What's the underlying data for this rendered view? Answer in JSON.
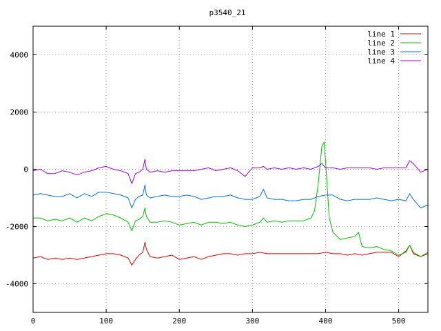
{
  "chart_data": {
    "type": "line",
    "title": "p3540_21",
    "xlabel": "",
    "ylabel": "",
    "xlim": [
      0,
      540
    ],
    "ylim": [
      -5000,
      5000
    ],
    "x_ticks": [
      0,
      100,
      200,
      300,
      400,
      500
    ],
    "y_ticks": [
      -4000,
      -2000,
      0,
      2000,
      4000
    ],
    "grid": true,
    "legend_position": "top-right",
    "series": [
      {
        "name": "line 1",
        "color": "#e00000",
        "x": [
          0,
          10,
          20,
          30,
          40,
          50,
          60,
          70,
          80,
          90,
          100,
          110,
          120,
          130,
          135,
          140,
          145,
          150,
          153,
          155,
          160,
          170,
          180,
          190,
          200,
          210,
          220,
          230,
          240,
          250,
          260,
          270,
          280,
          290,
          300,
          310,
          320,
          330,
          340,
          350,
          360,
          370,
          380,
          390,
          400,
          410,
          420,
          430,
          440,
          450,
          460,
          470,
          480,
          490,
          500,
          510,
          515,
          520,
          530,
          540
        ],
        "values": [
          -3100,
          -3050,
          -3150,
          -3100,
          -3150,
          -3100,
          -3150,
          -3100,
          -3050,
          -3000,
          -2950,
          -2950,
          -3000,
          -3100,
          -3350,
          -3150,
          -3000,
          -2900,
          -2550,
          -2800,
          -3050,
          -3100,
          -3050,
          -3000,
          -3150,
          -3100,
          -3050,
          -3150,
          -3050,
          -3000,
          -2950,
          -2950,
          -3000,
          -2950,
          -2950,
          -2900,
          -2950,
          -2950,
          -2950,
          -2950,
          -2950,
          -2950,
          -2950,
          -2950,
          -2900,
          -2950,
          -2950,
          -3000,
          -2950,
          -3000,
          -2950,
          -2900,
          -2900,
          -2900,
          -3050,
          -2850,
          -2650,
          -2950,
          -3050,
          -2950
        ]
      },
      {
        "name": "line 2",
        "color": "#00c000",
        "x": [
          0,
          10,
          20,
          30,
          40,
          50,
          60,
          70,
          80,
          90,
          100,
          110,
          120,
          130,
          135,
          140,
          145,
          150,
          153,
          155,
          160,
          170,
          180,
          190,
          200,
          210,
          220,
          230,
          240,
          250,
          260,
          270,
          280,
          290,
          300,
          310,
          315,
          320,
          330,
          340,
          350,
          360,
          370,
          380,
          385,
          390,
          395,
          398,
          400,
          405,
          410,
          420,
          430,
          440,
          445,
          450,
          460,
          470,
          480,
          490,
          500,
          510,
          515,
          520,
          530,
          540
        ],
        "values": [
          -1700,
          -1700,
          -1800,
          -1750,
          -1800,
          -1700,
          -1850,
          -1700,
          -1800,
          -1650,
          -1550,
          -1600,
          -1700,
          -1850,
          -2150,
          -1800,
          -1750,
          -1650,
          -1350,
          -1650,
          -1850,
          -1850,
          -1800,
          -1850,
          -1950,
          -1900,
          -1850,
          -1950,
          -1850,
          -1850,
          -1900,
          -1850,
          -1950,
          -2000,
          -1950,
          -1850,
          -1700,
          -1850,
          -1800,
          -1850,
          -1800,
          -1800,
          -1800,
          -1700,
          -1450,
          -500,
          800,
          950,
          300,
          -1700,
          -2200,
          -2450,
          -2400,
          -2350,
          -2200,
          -2700,
          -2750,
          -2700,
          -2800,
          -2850,
          -3000,
          -2900,
          -2650,
          -2900,
          -3050,
          -2900
        ]
      },
      {
        "name": "line 3",
        "color": "#0070e0",
        "x": [
          0,
          10,
          20,
          30,
          40,
          50,
          60,
          70,
          80,
          90,
          100,
          110,
          120,
          130,
          135,
          140,
          145,
          150,
          153,
          155,
          160,
          170,
          180,
          190,
          200,
          210,
          220,
          230,
          240,
          250,
          260,
          270,
          280,
          290,
          300,
          310,
          315,
          320,
          330,
          340,
          350,
          360,
          370,
          380,
          390,
          400,
          410,
          420,
          430,
          440,
          450,
          460,
          470,
          480,
          490,
          500,
          510,
          515,
          520,
          530,
          540
        ],
        "values": [
          -900,
          -850,
          -900,
          -950,
          -950,
          -850,
          -1000,
          -850,
          -950,
          -800,
          -800,
          -850,
          -900,
          -1000,
          -1350,
          -1050,
          -950,
          -900,
          -550,
          -900,
          -1000,
          -950,
          -900,
          -950,
          -950,
          -900,
          -950,
          -1050,
          -1000,
          -950,
          -950,
          -900,
          -1000,
          -1050,
          -1050,
          -950,
          -700,
          -1000,
          -1050,
          -1050,
          -1100,
          -1100,
          -1050,
          -1050,
          -950,
          -900,
          -900,
          -1050,
          -1100,
          -1050,
          -1050,
          -1050,
          -1000,
          -1050,
          -1100,
          -1050,
          -1100,
          -850,
          -1050,
          -1350,
          -1250
        ]
      },
      {
        "name": "line 4",
        "color": "#a000e0",
        "x": [
          0,
          10,
          20,
          30,
          40,
          50,
          60,
          70,
          80,
          90,
          100,
          110,
          120,
          130,
          135,
          140,
          145,
          150,
          153,
          155,
          160,
          170,
          180,
          190,
          200,
          210,
          220,
          230,
          240,
          250,
          260,
          270,
          280,
          290,
          300,
          310,
          315,
          320,
          330,
          340,
          350,
          360,
          370,
          380,
          390,
          395,
          400,
          410,
          420,
          430,
          440,
          450,
          460,
          470,
          480,
          490,
          500,
          510,
          515,
          520,
          530,
          540
        ],
        "values": [
          -50,
          0,
          -150,
          -150,
          -50,
          -100,
          -200,
          -100,
          -50,
          50,
          100,
          0,
          -50,
          -150,
          -500,
          -150,
          -100,
          0,
          350,
          0,
          -100,
          -50,
          -100,
          -50,
          -50,
          -50,
          -50,
          0,
          50,
          -50,
          0,
          50,
          -50,
          -250,
          50,
          50,
          100,
          0,
          50,
          0,
          50,
          0,
          50,
          0,
          100,
          200,
          50,
          50,
          0,
          50,
          50,
          50,
          50,
          0,
          50,
          50,
          50,
          50,
          300,
          200,
          -100,
          0
        ]
      }
    ]
  }
}
